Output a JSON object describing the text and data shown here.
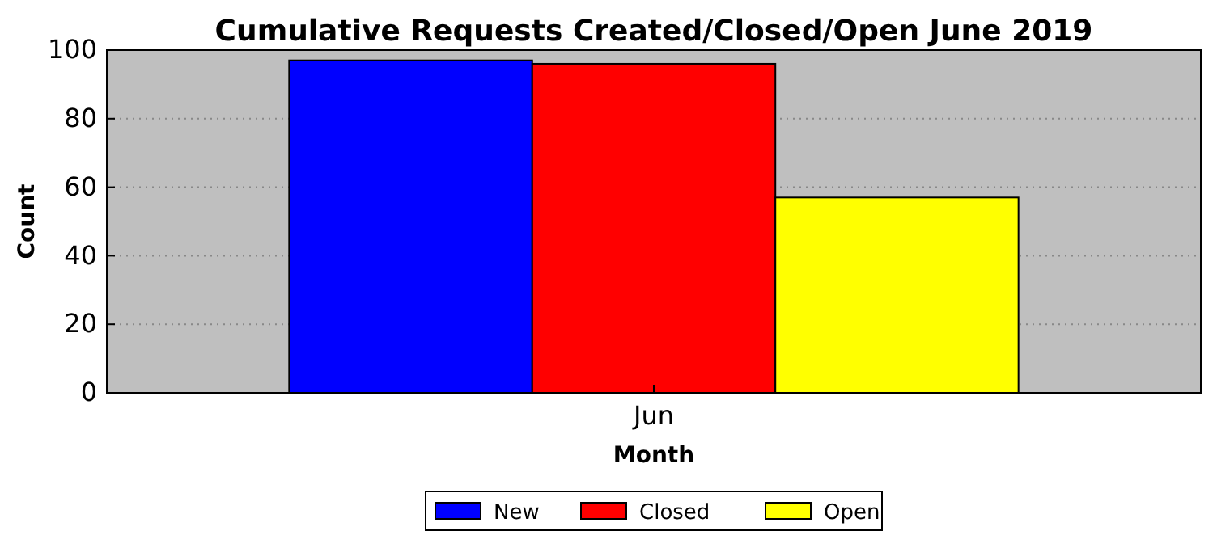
{
  "chart_data": {
    "type": "bar",
    "title": "Cumulative Requests Created/Closed/Open June 2019",
    "xlabel": "Month",
    "ylabel": "Count",
    "categories": [
      "Jun"
    ],
    "series": [
      {
        "name": "New",
        "color": "#0000ff",
        "values": [
          97
        ]
      },
      {
        "name": "Closed",
        "color": "#ff0000",
        "values": [
          96
        ]
      },
      {
        "name": "Open",
        "color": "#ffff00",
        "values": [
          57
        ]
      }
    ],
    "ylim": [
      0,
      100
    ],
    "yticks": [
      0,
      20,
      40,
      60,
      80,
      100
    ],
    "grid": "y",
    "legend": "bottom"
  }
}
